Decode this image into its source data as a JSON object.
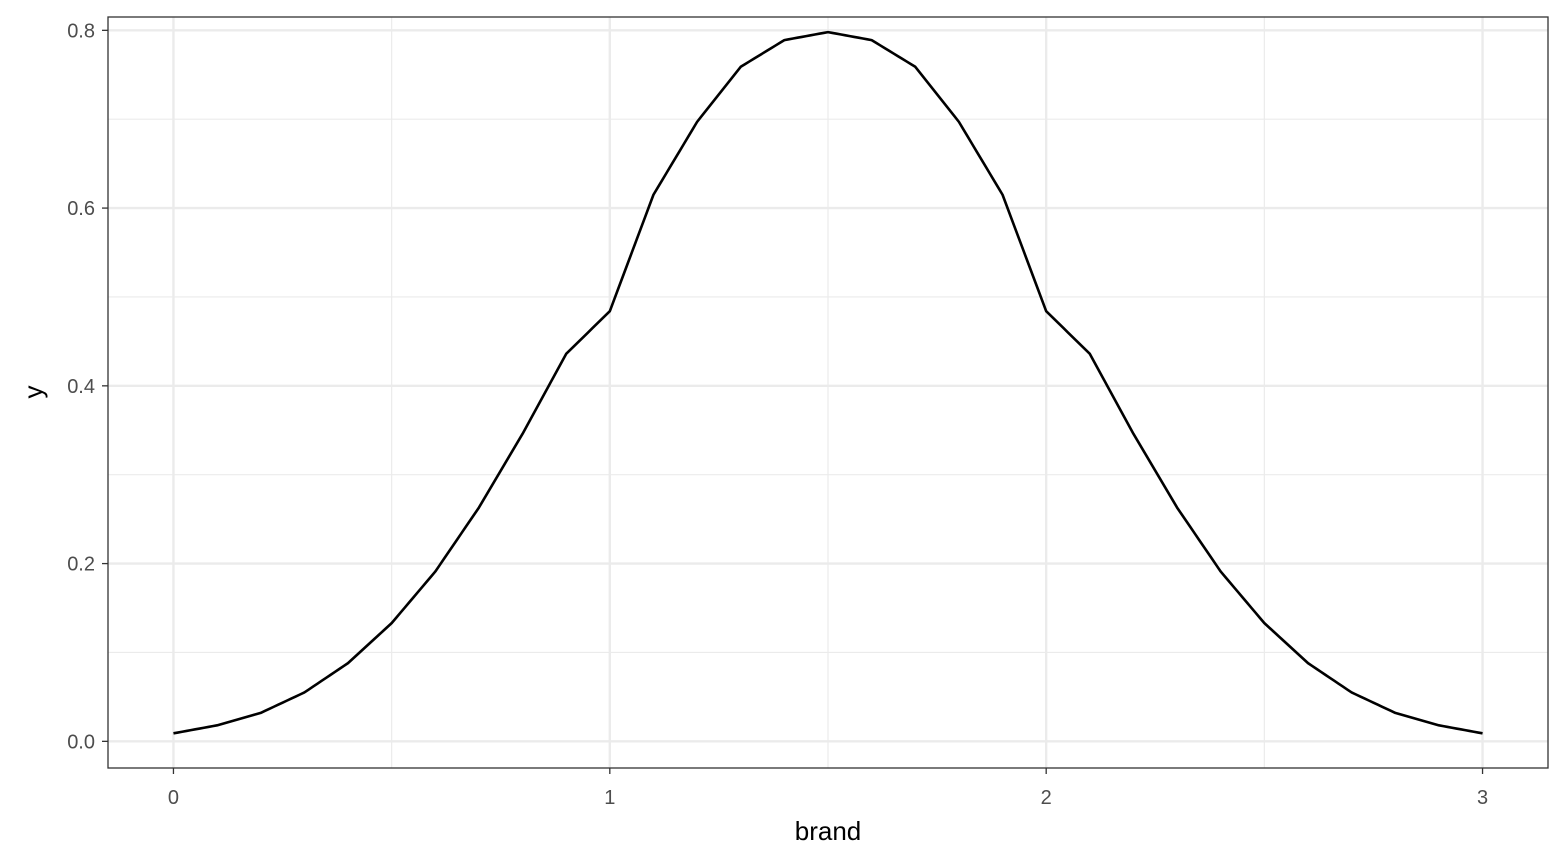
{
  "chart_data": {
    "type": "line",
    "title": "",
    "xlabel": "brand",
    "ylabel": "y",
    "xlim": [
      -0.15,
      3.15
    ],
    "ylim": [
      -0.03,
      0.815
    ],
    "x_ticks": [
      0,
      1,
      2,
      3
    ],
    "x_tick_labels": [
      "0",
      "1",
      "2",
      "3"
    ],
    "y_ticks": [
      0.0,
      0.2,
      0.4,
      0.6,
      0.8
    ],
    "y_tick_labels": [
      "0.0",
      "0.2",
      "0.4",
      "0.6",
      "0.8"
    ],
    "x_minor_ticks": [
      0.5,
      1.5,
      2.5
    ],
    "y_minor_ticks": [
      0.1,
      0.3,
      0.5,
      0.7
    ],
    "grid": true,
    "series": [
      {
        "color": "#000000",
        "x": [
          0.0,
          0.1,
          0.2,
          0.3,
          0.4,
          0.5,
          0.6,
          0.7,
          0.8,
          0.9,
          1.0,
          1.1,
          1.2,
          1.3,
          1.4,
          1.5,
          1.6,
          1.7,
          1.8,
          1.9,
          2.0,
          2.1,
          2.2,
          2.3,
          2.4,
          2.5,
          2.6,
          2.7,
          2.8,
          2.9,
          3.0
        ],
        "y": [
          0.009,
          0.018,
          0.032,
          0.055,
          0.088,
          0.133,
          0.191,
          0.263,
          0.346,
          0.436,
          0.484,
          0.615,
          0.697,
          0.759,
          0.789,
          0.798,
          0.789,
          0.759,
          0.697,
          0.615,
          0.484,
          0.436,
          0.346,
          0.263,
          0.191,
          0.133,
          0.088,
          0.055,
          0.032,
          0.018,
          0.009
        ]
      }
    ]
  }
}
